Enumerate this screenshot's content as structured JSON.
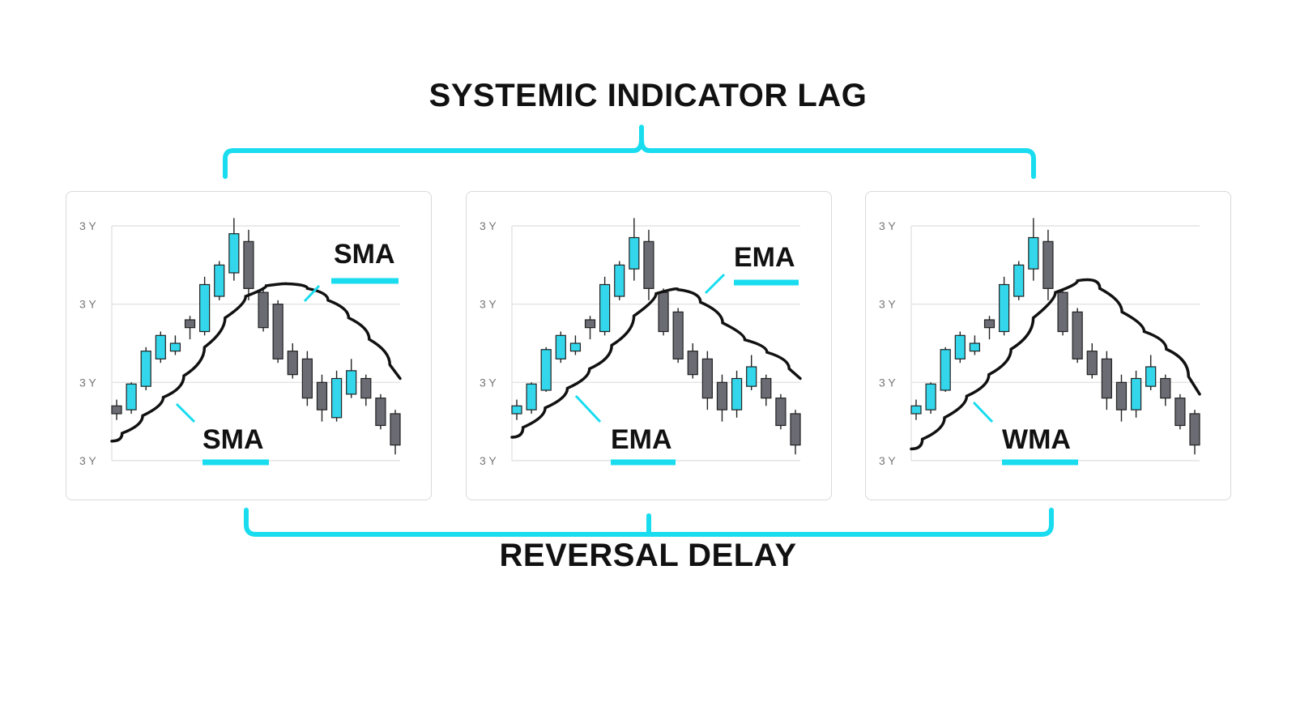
{
  "title_top": "SYSTEMIC INDICATOR LAG",
  "title_bottom": "REVERSAL DELAY",
  "colors": {
    "accent": "#19dcef",
    "bull": "#33d6ea",
    "bear": "#6a6b73",
    "line": "#111111",
    "grid": "#dedede"
  },
  "chart_data": [
    {
      "type": "line",
      "indicator": "SMA",
      "y_tick_labels": [
        "3 Y",
        "3 Y",
        "3 Y",
        "3 Y"
      ],
      "ylim": [
        0,
        3
      ],
      "grid": true,
      "label_top": "SMA",
      "label_bottom": "SMA",
      "candles": [
        {
          "o": 0.7,
          "c": 0.6,
          "h": 0.78,
          "l": 0.52
        },
        {
          "o": 0.65,
          "c": 0.98,
          "h": 1.0,
          "l": 0.6
        },
        {
          "o": 0.95,
          "c": 1.4,
          "h": 1.45,
          "l": 0.9
        },
        {
          "o": 1.3,
          "c": 1.6,
          "h": 1.65,
          "l": 1.25
        },
        {
          "o": 1.4,
          "c": 1.5,
          "h": 1.6,
          "l": 1.35
        },
        {
          "o": 1.8,
          "c": 1.7,
          "h": 1.85,
          "l": 1.55
        },
        {
          "o": 1.65,
          "c": 2.25,
          "h": 2.35,
          "l": 1.6
        },
        {
          "o": 2.1,
          "c": 2.5,
          "h": 2.55,
          "l": 2.05
        },
        {
          "o": 2.4,
          "c": 2.9,
          "h": 3.1,
          "l": 2.3
        },
        {
          "o": 2.8,
          "c": 2.2,
          "h": 2.95,
          "l": 2.05
        },
        {
          "o": 2.15,
          "c": 1.7,
          "h": 2.2,
          "l": 1.65
        },
        {
          "o": 2.0,
          "c": 1.3,
          "h": 2.05,
          "l": 1.25
        },
        {
          "o": 1.4,
          "c": 1.1,
          "h": 1.5,
          "l": 1.05
        },
        {
          "o": 1.3,
          "c": 0.8,
          "h": 1.4,
          "l": 0.7
        },
        {
          "o": 1.0,
          "c": 0.65,
          "h": 1.1,
          "l": 0.5
        },
        {
          "o": 0.55,
          "c": 1.05,
          "h": 1.15,
          "l": 0.5
        },
        {
          "o": 0.85,
          "c": 1.15,
          "h": 1.3,
          "l": 0.8
        },
        {
          "o": 1.05,
          "c": 0.8,
          "h": 1.1,
          "l": 0.7
        },
        {
          "o": 0.8,
          "c": 0.45,
          "h": 0.85,
          "l": 0.4
        },
        {
          "o": 0.6,
          "c": 0.2,
          "h": 0.65,
          "l": 0.08
        }
      ],
      "ma": [
        [
          0,
          0.25
        ],
        [
          1,
          0.45
        ],
        [
          2,
          0.7
        ],
        [
          3,
          0.92
        ],
        [
          4,
          1.25
        ],
        [
          5,
          1.65
        ],
        [
          6,
          2.0
        ],
        [
          7,
          2.2
        ],
        [
          8,
          2.27
        ],
        [
          9,
          2.25
        ],
        [
          10,
          2.15
        ],
        [
          11,
          1.95
        ],
        [
          12,
          1.7
        ],
        [
          13,
          1.4
        ],
        [
          14,
          1.05
        ]
      ],
      "ma_x_step": 0.8
    },
    {
      "type": "line",
      "indicator": "EMA",
      "y_tick_labels": [
        "3 Y",
        "3 Y",
        "3 Y",
        "3 Y"
      ],
      "ylim": [
        0,
        3
      ],
      "grid": true,
      "label_top": "EMA",
      "label_bottom": "EMA",
      "candles": [
        {
          "o": 0.6,
          "c": 0.7,
          "h": 0.78,
          "l": 0.52
        },
        {
          "o": 0.65,
          "c": 0.98,
          "h": 1.0,
          "l": 0.6
        },
        {
          "o": 0.9,
          "c": 1.42,
          "h": 1.45,
          "l": 0.88
        },
        {
          "o": 1.3,
          "c": 1.6,
          "h": 1.65,
          "l": 1.25
        },
        {
          "o": 1.4,
          "c": 1.5,
          "h": 1.6,
          "l": 1.35
        },
        {
          "o": 1.8,
          "c": 1.7,
          "h": 1.85,
          "l": 1.55
        },
        {
          "o": 1.65,
          "c": 2.25,
          "h": 2.35,
          "l": 1.6
        },
        {
          "o": 2.1,
          "c": 2.5,
          "h": 2.55,
          "l": 2.05
        },
        {
          "o": 2.45,
          "c": 2.85,
          "h": 3.1,
          "l": 2.3
        },
        {
          "o": 2.8,
          "c": 2.2,
          "h": 2.95,
          "l": 2.05
        },
        {
          "o": 2.15,
          "c": 1.65,
          "h": 2.2,
          "l": 1.6
        },
        {
          "o": 1.9,
          "c": 1.3,
          "h": 1.95,
          "l": 1.25
        },
        {
          "o": 1.4,
          "c": 1.1,
          "h": 1.5,
          "l": 1.05
        },
        {
          "o": 1.3,
          "c": 0.8,
          "h": 1.4,
          "l": 0.65
        },
        {
          "o": 1.0,
          "c": 0.65,
          "h": 1.1,
          "l": 0.5
        },
        {
          "o": 0.65,
          "c": 1.05,
          "h": 1.15,
          "l": 0.55
        },
        {
          "o": 0.95,
          "c": 1.2,
          "h": 1.35,
          "l": 0.9
        },
        {
          "o": 1.05,
          "c": 0.8,
          "h": 1.1,
          "l": 0.7
        },
        {
          "o": 0.8,
          "c": 0.45,
          "h": 0.85,
          "l": 0.4
        },
        {
          "o": 0.6,
          "c": 0.2,
          "h": 0.65,
          "l": 0.08
        }
      ],
      "ma": [
        [
          0,
          0.3
        ],
        [
          1,
          0.55
        ],
        [
          2,
          0.8
        ],
        [
          3,
          1.05
        ],
        [
          4,
          1.3
        ],
        [
          5,
          1.65
        ],
        [
          6,
          2.05
        ],
        [
          7,
          2.22
        ],
        [
          8,
          2.15
        ],
        [
          9,
          1.9
        ],
        [
          10,
          1.62
        ],
        [
          11,
          1.47
        ],
        [
          12,
          1.3
        ],
        [
          13,
          1.05
        ]
      ],
      "ma_x_step": 0.8
    },
    {
      "type": "line",
      "indicator": "WMA",
      "y_tick_labels": [
        "3 Y",
        "3 Y",
        "3 Y",
        "3 Y"
      ],
      "ylim": [
        0,
        3
      ],
      "grid": true,
      "label_top": "",
      "label_bottom": "WMA",
      "candles": [
        {
          "o": 0.6,
          "c": 0.7,
          "h": 0.78,
          "l": 0.52
        },
        {
          "o": 0.65,
          "c": 0.98,
          "h": 1.0,
          "l": 0.6
        },
        {
          "o": 0.9,
          "c": 1.42,
          "h": 1.45,
          "l": 0.88
        },
        {
          "o": 1.3,
          "c": 1.6,
          "h": 1.65,
          "l": 1.25
        },
        {
          "o": 1.4,
          "c": 1.5,
          "h": 1.6,
          "l": 1.35
        },
        {
          "o": 1.8,
          "c": 1.7,
          "h": 1.85,
          "l": 1.55
        },
        {
          "o": 1.65,
          "c": 2.25,
          "h": 2.35,
          "l": 1.6
        },
        {
          "o": 2.1,
          "c": 2.5,
          "h": 2.55,
          "l": 2.05
        },
        {
          "o": 2.45,
          "c": 2.85,
          "h": 3.1,
          "l": 2.3
        },
        {
          "o": 2.8,
          "c": 2.2,
          "h": 2.95,
          "l": 2.05
        },
        {
          "o": 2.15,
          "c": 1.65,
          "h": 2.2,
          "l": 1.6
        },
        {
          "o": 1.9,
          "c": 1.3,
          "h": 1.95,
          "l": 1.25
        },
        {
          "o": 1.4,
          "c": 1.1,
          "h": 1.5,
          "l": 1.05
        },
        {
          "o": 1.3,
          "c": 0.8,
          "h": 1.4,
          "l": 0.65
        },
        {
          "o": 1.0,
          "c": 0.65,
          "h": 1.1,
          "l": 0.5
        },
        {
          "o": 0.65,
          "c": 1.05,
          "h": 1.15,
          "l": 0.55
        },
        {
          "o": 0.95,
          "c": 1.2,
          "h": 1.35,
          "l": 0.9
        },
        {
          "o": 1.05,
          "c": 0.8,
          "h": 1.1,
          "l": 0.7
        },
        {
          "o": 0.8,
          "c": 0.45,
          "h": 0.85,
          "l": 0.4
        },
        {
          "o": 0.6,
          "c": 0.2,
          "h": 0.65,
          "l": 0.08
        }
      ],
      "ma": [
        [
          0,
          0.15
        ],
        [
          1,
          0.4
        ],
        [
          2,
          0.7
        ],
        [
          3,
          0.95
        ],
        [
          4,
          1.25
        ],
        [
          5,
          1.6
        ],
        [
          6,
          2.05
        ],
        [
          7,
          2.25
        ],
        [
          8,
          2.35
        ],
        [
          9,
          2.05
        ],
        [
          10,
          1.75
        ],
        [
          11,
          1.55
        ],
        [
          12,
          1.3
        ],
        [
          13,
          0.85
        ]
      ],
      "ma_x_step": 0.8
    }
  ]
}
